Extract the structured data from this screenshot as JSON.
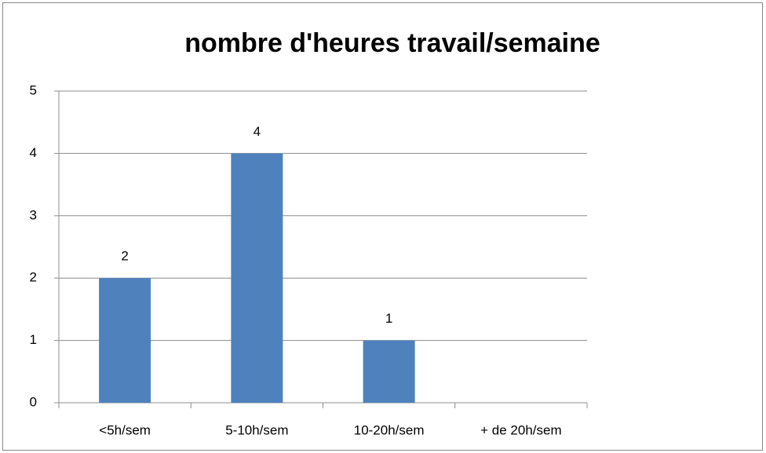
{
  "chart_data": {
    "type": "bar",
    "title": "nombre d'heures travail/semaine",
    "categories": [
      "<5h/sem",
      "5-10h/sem",
      "10-20h/sem",
      "+ de 20h/sem"
    ],
    "values": [
      2,
      4,
      1,
      null
    ],
    "color": "#4f81bd",
    "ylim": [
      0,
      5
    ],
    "yticks": [
      0,
      1,
      2,
      3,
      4,
      5
    ],
    "grid": true
  }
}
